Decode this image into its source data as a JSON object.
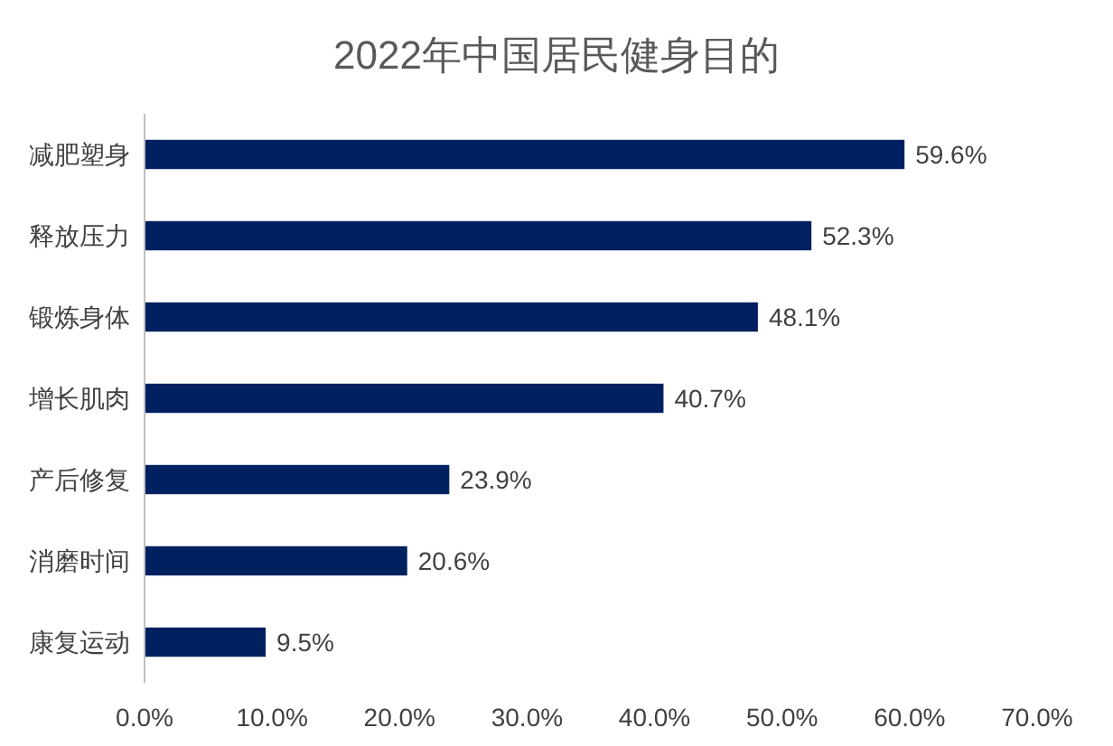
{
  "chart_data": {
    "type": "bar",
    "orientation": "horizontal",
    "title": "2022年中国居民健身目的",
    "categories": [
      "减肥塑身",
      "释放压力",
      "锻炼身体",
      "增长肌肉",
      "产后修复",
      "消磨时间",
      "康复运动"
    ],
    "values": [
      59.6,
      52.3,
      48.1,
      40.7,
      23.9,
      20.6,
      9.5
    ],
    "value_labels": [
      "59.6%",
      "52.3%",
      "48.1%",
      "40.7%",
      "23.9%",
      "20.6%",
      "9.5%"
    ],
    "color": "#002060",
    "xlim": [
      0,
      70
    ],
    "xticks": [
      {
        "value": 0,
        "label": "0.0%"
      },
      {
        "value": 10,
        "label": "10.0%"
      },
      {
        "value": 20,
        "label": "20.0%"
      },
      {
        "value": 30,
        "label": "30.0%"
      },
      {
        "value": 40,
        "label": "40.0%"
      },
      {
        "value": 50,
        "label": "50.0%"
      },
      {
        "value": 60,
        "label": "60.0%"
      },
      {
        "value": 70,
        "label": "70.0%"
      }
    ],
    "grid": false
  }
}
